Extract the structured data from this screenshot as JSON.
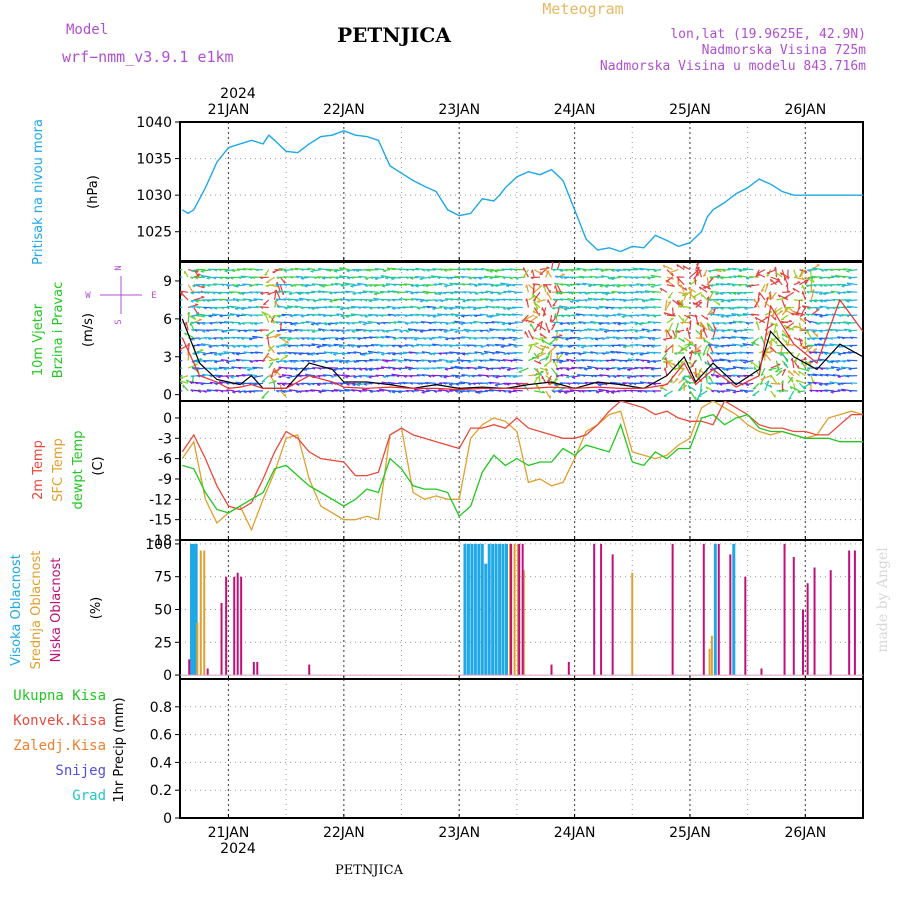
{
  "header": {
    "model_label": "Model",
    "model_name": "wrf−nmm_v3.9.1  e1km",
    "station": "PETNJICA",
    "meteogram": "Meteogram",
    "lonlat": "lon,lat (19.9625E, 42.9N)",
    "elevation": "Nadmorska Visina 725m",
    "model_elevation": "Nadmorska Visina u modelu 843.716m",
    "footer_station": "PETNJICA",
    "watermark": "made by Angel",
    "year": "2024"
  },
  "colors": {
    "pressure": "#1ea8e8",
    "wind_speed": "#000000",
    "gust": "#e83030",
    "temp2m": "#e84a3c",
    "sfc_temp": "#e0a030",
    "dewpt": "#22c822",
    "high_cloud": "#1ea8e8",
    "mid_cloud": "#e0a030",
    "low_cloud": "#c0107a",
    "label_purple": "#b050d0",
    "meteogram_orange": "#e8b860"
  },
  "chart_data": [
    {
      "type": "line",
      "title": "",
      "ylabel_left": "Pritisak na nivou mora",
      "unit": "(hPa)",
      "x_tick_labels": [
        "21JAN",
        "22JAN",
        "23JAN",
        "24JAN",
        "25JAN",
        "26JAN"
      ],
      "ylim": [
        1021,
        1040
      ],
      "y_ticks": [
        "1025",
        "1030",
        "1035",
        "1040"
      ],
      "series": [
        {
          "x_days": [
            20.6,
            20.65,
            20.7,
            20.8,
            20.9,
            21.0,
            21.1,
            21.2,
            21.3,
            21.35,
            21.4,
            21.5,
            21.6,
            21.7,
            21.8,
            21.9,
            22.0,
            22.1,
            22.2,
            22.3,
            22.4,
            22.5,
            22.6,
            22.7,
            22.8,
            22.9,
            23.0,
            23.1,
            23.2,
            23.3,
            23.35,
            23.4,
            23.5,
            23.6,
            23.7,
            23.8,
            23.9,
            24.0,
            24.1,
            24.2,
            24.3,
            24.4,
            24.5,
            24.6,
            24.7,
            24.8,
            24.9,
            25.0,
            25.1,
            25.15,
            25.2,
            25.3,
            25.4,
            25.5,
            25.6,
            25.7,
            25.8,
            25.9,
            26.0,
            26.1,
            26.2,
            26.3,
            26.4,
            26.5
          ],
          "values": [
            1028.0,
            1027.5,
            1028.0,
            1031.0,
            1034.5,
            1036.5,
            1037.0,
            1037.5,
            1037.0,
            1038.2,
            1037.5,
            1036.0,
            1035.8,
            1037.0,
            1038.0,
            1038.2,
            1038.8,
            1038.2,
            1038.0,
            1037.5,
            1034.0,
            1033.0,
            1032.0,
            1031.2,
            1030.5,
            1028.0,
            1027.2,
            1027.5,
            1029.5,
            1029.2,
            1030.0,
            1031.0,
            1032.5,
            1033.2,
            1032.8,
            1033.5,
            1032.0,
            1028.0,
            1024.0,
            1022.5,
            1022.8,
            1022.3,
            1023.0,
            1022.8,
            1024.5,
            1023.8,
            1023.0,
            1023.5,
            1025.0,
            1027.0,
            1028.0,
            1029.0,
            1030.2,
            1031.0,
            1032.2,
            1031.5,
            1030.5,
            1030.0,
            1030.0,
            1030.0,
            1030.0,
            1030.0,
            1030.0,
            1030.0
          ]
        }
      ]
    },
    {
      "type": "line",
      "title": "",
      "ylabel_left": [
        "10m Vjetar",
        "Brzina i Pravac"
      ],
      "unit": "(m/s)",
      "compass": [
        "N",
        "W",
        "E",
        "S"
      ],
      "ylim": [
        -0.5,
        10.5
      ],
      "y_ticks": [
        "0",
        "3",
        "6",
        "9"
      ],
      "series": [
        {
          "name": "speed",
          "x_days": [
            20.6,
            20.75,
            20.9,
            21.0,
            21.1,
            21.2,
            21.3,
            21.5,
            21.7,
            21.9,
            22.0,
            22.2,
            22.4,
            22.6,
            22.8,
            23.0,
            23.2,
            23.4,
            23.6,
            23.8,
            24.0,
            24.2,
            24.4,
            24.6,
            24.8,
            24.95,
            25.05,
            25.2,
            25.4,
            25.6,
            25.7,
            25.9,
            26.1,
            26.3,
            26.5
          ],
          "values": [
            6.0,
            2.5,
            1.2,
            1.0,
            0.8,
            1.5,
            0.5,
            0.5,
            2.5,
            2.0,
            1.0,
            1.0,
            0.8,
            0.5,
            0.8,
            0.5,
            0.6,
            0.5,
            0.8,
            1.0,
            0.5,
            1.0,
            0.8,
            0.5,
            1.5,
            3.0,
            1.0,
            2.5,
            0.8,
            2.0,
            5.0,
            3.0,
            2.0,
            4.0,
            3.0
          ]
        },
        {
          "name": "gust",
          "x_days": [
            20.6,
            20.75,
            20.9,
            21.0,
            21.1,
            21.2,
            21.3,
            21.5,
            21.7,
            21.9,
            22.0,
            22.2,
            22.4,
            22.6,
            22.8,
            23.0,
            23.2,
            23.4,
            23.6,
            23.8,
            24.0,
            24.2,
            24.4,
            24.6,
            24.8,
            24.95,
            25.05,
            25.2,
            25.4,
            25.6,
            25.7,
            25.9,
            26.1,
            26.3,
            26.5
          ],
          "values": [
            4.5,
            1.5,
            1.0,
            0.5,
            0.6,
            0.8,
            0.5,
            0.5,
            1.5,
            1.0,
            0.6,
            0.5,
            0.6,
            0.5,
            0.5,
            0.4,
            0.5,
            0.5,
            0.5,
            0.6,
            0.5,
            0.6,
            0.5,
            0.5,
            0.8,
            2.5,
            0.8,
            2.0,
            0.6,
            1.5,
            7.0,
            4.0,
            2.5,
            7.5,
            5.0
          ]
        }
      ]
    },
    {
      "type": "line",
      "title": "",
      "ylabel_left": [
        "2m Temp",
        "SFC Temp",
        "dewpt Temp"
      ],
      "unit": "(C)",
      "ylim": [
        -18,
        2.5
      ],
      "y_ticks": [
        "0",
        "-3",
        "-6",
        "-9",
        "-12",
        "-15",
        "-18"
      ],
      "series": [
        {
          "name": "2m Temp",
          "x_days": [
            20.6,
            20.7,
            20.8,
            20.9,
            21.0,
            21.1,
            21.2,
            21.3,
            21.4,
            21.5,
            21.6,
            21.7,
            21.8,
            22.0,
            22.1,
            22.2,
            22.3,
            22.4,
            22.5,
            22.6,
            22.7,
            22.8,
            22.9,
            23.0,
            23.1,
            23.2,
            23.3,
            23.4,
            23.5,
            23.6,
            23.7,
            23.8,
            23.9,
            24.0,
            24.1,
            24.2,
            24.3,
            24.4,
            24.5,
            24.6,
            24.7,
            24.8,
            24.9,
            25.0,
            25.1,
            25.2,
            25.3,
            25.4,
            25.5,
            25.6,
            25.7,
            25.8,
            25.9,
            26.0,
            26.1,
            26.2,
            26.3,
            26.4,
            26.5
          ],
          "values": [
            -5.0,
            -2.5,
            -6.0,
            -10.0,
            -13.0,
            -13.5,
            -12.5,
            -9.0,
            -5.0,
            -2.0,
            -3.0,
            -5.0,
            -6.0,
            -6.5,
            -8.5,
            -8.5,
            -8.0,
            -2.5,
            -1.5,
            -2.5,
            -3.0,
            -3.5,
            -4.0,
            -4.5,
            -1.5,
            -1.5,
            -1.0,
            -1.5,
            0.0,
            -1.5,
            -2.0,
            -2.5,
            -3.0,
            -3.0,
            -2.5,
            -1.0,
            1.0,
            2.5,
            2.0,
            1.5,
            0.5,
            1.0,
            0.0,
            -0.5,
            -0.5,
            -1.0,
            2.5,
            1.5,
            0.5,
            -1.0,
            -1.5,
            -1.5,
            -2.0,
            -2.0,
            -2.5,
            -2.5,
            -1.0,
            0.5,
            0.5
          ]
        },
        {
          "name": "SFC Temp",
          "x_days": [
            20.6,
            20.7,
            20.8,
            20.9,
            21.0,
            21.1,
            21.2,
            21.3,
            21.4,
            21.5,
            21.6,
            21.7,
            21.8,
            22.0,
            22.1,
            22.2,
            22.3,
            22.4,
            22.5,
            22.6,
            22.7,
            22.8,
            22.9,
            23.0,
            23.1,
            23.2,
            23.3,
            23.4,
            23.5,
            23.6,
            23.7,
            23.8,
            23.9,
            24.0,
            24.1,
            24.2,
            24.3,
            24.4,
            24.5,
            24.6,
            24.7,
            24.8,
            24.9,
            25.0,
            25.1,
            25.2,
            25.3,
            25.4,
            25.5,
            25.6,
            25.7,
            25.8,
            25.9,
            26.0,
            26.1,
            26.2,
            26.3,
            26.4,
            26.5
          ],
          "values": [
            -6.0,
            -3.5,
            -12.0,
            -15.5,
            -14.0,
            -13.0,
            -16.5,
            -12.0,
            -8.0,
            -3.0,
            -2.5,
            -9.0,
            -13.0,
            -15.0,
            -15.0,
            -14.5,
            -15.0,
            -2.5,
            -1.5,
            -11.0,
            -12.0,
            -11.5,
            -12.0,
            -12.0,
            -3.0,
            -1.0,
            0.0,
            -0.5,
            -2.0,
            -9.5,
            -9.0,
            -10.0,
            -9.5,
            -6.0,
            -2.0,
            -1.0,
            0.5,
            1.0,
            -5.0,
            -5.5,
            -6.0,
            -5.5,
            -4.0,
            -3.0,
            1.5,
            2.5,
            1.5,
            0.5,
            -1.0,
            -2.0,
            -2.5,
            -2.0,
            -2.5,
            -3.0,
            -2.5,
            0.0,
            0.5,
            1.0,
            0.5
          ]
        },
        {
          "name": "dewpt Temp",
          "x_days": [
            20.6,
            20.7,
            20.8,
            20.9,
            21.0,
            21.1,
            21.2,
            21.3,
            21.4,
            21.5,
            21.6,
            21.7,
            21.8,
            22.0,
            22.1,
            22.2,
            22.3,
            22.4,
            22.5,
            22.6,
            22.7,
            22.8,
            22.9,
            23.0,
            23.1,
            23.2,
            23.3,
            23.4,
            23.5,
            23.6,
            23.7,
            23.8,
            23.9,
            24.0,
            24.1,
            24.2,
            24.3,
            24.4,
            24.5,
            24.6,
            24.7,
            24.8,
            24.9,
            25.0,
            25.1,
            25.2,
            25.3,
            25.4,
            25.5,
            25.6,
            25.7,
            25.8,
            25.9,
            26.0,
            26.1,
            26.2,
            26.3,
            26.4,
            26.5
          ],
          "values": [
            -7.0,
            -7.5,
            -11.0,
            -13.5,
            -14.0,
            -13.0,
            -12.0,
            -11.0,
            -7.5,
            -7.0,
            -8.5,
            -10.0,
            -11.0,
            -13.0,
            -12.0,
            -10.5,
            -11.0,
            -6.0,
            -7.5,
            -10.0,
            -10.5,
            -10.5,
            -11.0,
            -14.5,
            -13.0,
            -8.0,
            -5.5,
            -7.0,
            -6.0,
            -7.0,
            -6.5,
            -6.5,
            -4.5,
            -5.5,
            -4.0,
            -4.5,
            -5.0,
            -1.0,
            -6.5,
            -7.0,
            -5.0,
            -6.0,
            -4.5,
            -4.5,
            0.0,
            0.5,
            -1.0,
            0.0,
            0.5,
            -1.5,
            -2.0,
            -2.0,
            -2.5,
            -3.0,
            -3.0,
            -3.0,
            -3.5,
            -3.5,
            -3.5
          ]
        }
      ]
    },
    {
      "type": "bar",
      "title": "",
      "ylabel_left": [
        "Visoka Oblacnost",
        "Srednja Oblacnost",
        "Niska Oblacnost"
      ],
      "unit": "(%)",
      "ylim": [
        -3,
        103
      ],
      "y_ticks": [
        "0",
        "25",
        "50",
        "75",
        "100"
      ],
      "series": [
        {
          "name": "Visoka Oblacnost",
          "x_days": [
            20.68,
            20.7,
            20.72,
            23.05,
            23.08,
            23.11,
            23.14,
            23.17,
            23.2,
            23.23,
            23.26,
            23.29,
            23.32,
            23.35,
            23.38,
            23.41,
            25.22,
            25.38
          ],
          "values": [
            100,
            100,
            100,
            100,
            100,
            100,
            100,
            100,
            100,
            85,
            100,
            100,
            100,
            100,
            100,
            100,
            100,
            100
          ]
        },
        {
          "name": "Srednja Oblacnost",
          "x_days": [
            20.73,
            20.76,
            20.79,
            23.44,
            23.48,
            23.51,
            23.56,
            24.5,
            25.17,
            25.19
          ],
          "values": [
            40,
            95,
            95,
            100,
            100,
            100,
            80,
            78,
            20,
            30
          ]
        },
        {
          "name": "Niska Oblacnost",
          "x_days": [
            20.66,
            20.82,
            20.94,
            20.98,
            21.05,
            21.08,
            21.11,
            21.22,
            21.25,
            21.7,
            23.45,
            23.52,
            23.55,
            23.8,
            23.95,
            24.17,
            24.23,
            24.33,
            24.85,
            25.12,
            25.25,
            25.35,
            25.48,
            25.62,
            25.82,
            25.9,
            25.98,
            26.02,
            26.08,
            26.22,
            26.38,
            26.43
          ],
          "values": [
            12,
            5,
            55,
            75,
            75,
            78,
            75,
            10,
            10,
            8,
            100,
            100,
            100,
            8,
            10,
            100,
            100,
            92,
            100,
            100,
            100,
            92,
            75,
            5,
            100,
            90,
            50,
            70,
            82,
            80,
            95,
            95
          ]
        }
      ]
    },
    {
      "type": "bar",
      "title": "",
      "legend_left": [
        "Ukupna Kisa",
        "Konvek.Kisa",
        "Zaledj.Kisa",
        "Snijeg",
        "Grad"
      ],
      "legend_colors": [
        "#22c822",
        "#e84a3c",
        "#f08030",
        "#5050e0",
        "#20c8c0"
      ],
      "ylabel": "1hr Precip (mm)",
      "ylim": [
        0,
        1.0
      ],
      "y_ticks": [
        "0",
        "0.2",
        "0.4",
        "0.6",
        "0.8"
      ],
      "series": [
        {
          "name": "Ukupna Kisa",
          "values": []
        }
      ]
    }
  ]
}
